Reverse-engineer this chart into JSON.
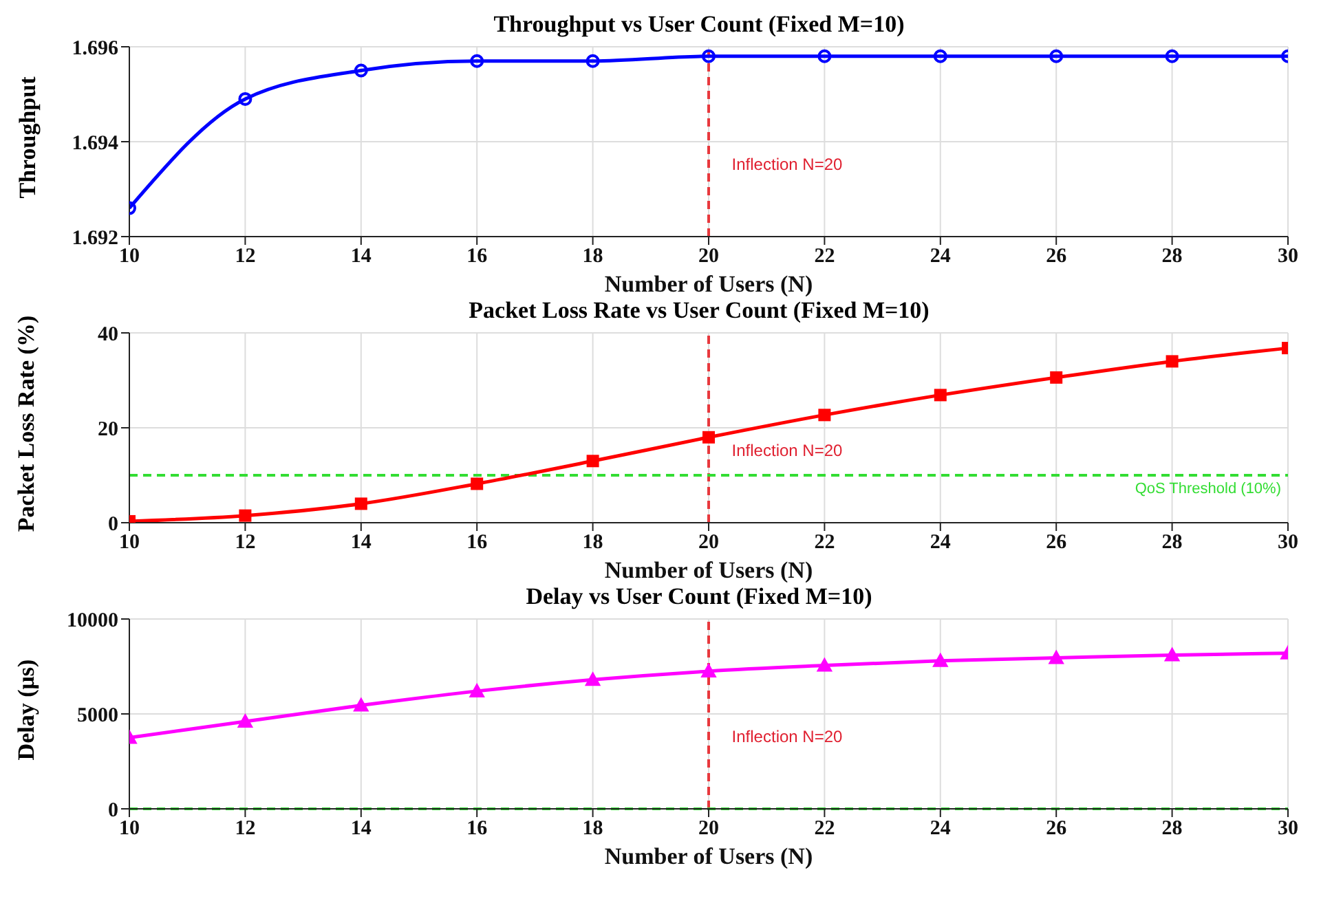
{
  "chart_data": [
    {
      "type": "line",
      "title": "Throughput vs User Count (Fixed M=10)",
      "xlabel": "Number of Users (N)",
      "ylabel": "Throughput",
      "x": [
        10,
        12,
        14,
        16,
        18,
        20,
        22,
        24,
        26,
        28,
        30
      ],
      "series": [
        {
          "color": "#0000ff",
          "values": [
            1.6926,
            1.6949,
            1.6955,
            1.6957,
            1.6957,
            1.6958,
            1.6958,
            1.6958,
            1.6958,
            1.6958,
            1.6958
          ]
        }
      ],
      "xlim": [
        10,
        30
      ],
      "xticks": [
        10,
        12,
        14,
        16,
        18,
        20,
        22,
        24,
        26,
        28,
        30
      ],
      "ylim": [
        1.692,
        1.696
      ],
      "yticks": [
        {
          "value": 1.692,
          "label": "1.692"
        },
        {
          "value": 1.694,
          "label": "1.694"
        },
        {
          "value": 1.696,
          "label": "1.696"
        }
      ],
      "ref_lines": [
        {
          "axis": "x",
          "value": 20,
          "color": "#e8383d",
          "line_style": "dashed"
        }
      ],
      "annotations": [
        "Inflection N=20"
      ],
      "grid": true,
      "marker": "circle",
      "line_style": "solid",
      "legend": false
    },
    {
      "type": "line",
      "title": "Packet Loss Rate vs User Count (Fixed M=10)",
      "xlabel": "Number of Users (N)",
      "ylabel": "Packet Loss Rate (%)",
      "x": [
        10,
        12,
        14,
        16,
        18,
        20,
        22,
        24,
        26,
        28,
        30
      ],
      "series": [
        {
          "color": "#ff0000",
          "values": [
            0.3,
            1.5,
            4,
            8.2,
            13,
            18,
            22.7,
            26.9,
            30.6,
            34,
            36.8
          ]
        }
      ],
      "xlim": [
        10,
        30
      ],
      "xticks": [
        10,
        12,
        14,
        16,
        18,
        20,
        22,
        24,
        26,
        28,
        30
      ],
      "ylim": [
        0,
        40
      ],
      "yticks": [
        0,
        20,
        40
      ],
      "ref_lines": [
        {
          "axis": "x",
          "value": 20,
          "color": "#e8383d",
          "line_style": "dashed"
        },
        {
          "axis": "y",
          "value": 10,
          "label": "QoS Threshold (10%)",
          "color": "#33dd33",
          "line_style": "dashed"
        }
      ],
      "annotations": [
        "Inflection N=20"
      ],
      "grid": true,
      "marker": "square",
      "line_style": "solid",
      "legend": false
    },
    {
      "type": "line",
      "title": "Delay vs User Count (Fixed M=10)",
      "xlabel": "Number of Users (N)",
      "ylabel": "Delay (μs)",
      "x": [
        10,
        12,
        14,
        16,
        18,
        20,
        22,
        24,
        26,
        28,
        30
      ],
      "series": [
        {
          "color": "#ff00ff",
          "values": [
            3750,
            4600,
            5450,
            6200,
            6800,
            7250,
            7550,
            7800,
            7950,
            8100,
            8200
          ]
        }
      ],
      "xlim": [
        10,
        30
      ],
      "xticks": [
        10,
        12,
        14,
        16,
        18,
        20,
        22,
        24,
        26,
        28,
        30
      ],
      "ylim": [
        0,
        10000
      ],
      "yticks": [
        0,
        5000,
        10000
      ],
      "ref_lines": [
        {
          "axis": "x",
          "value": 20,
          "color": "#e8383d",
          "line_style": "dashed"
        },
        {
          "axis": "y",
          "value": 0,
          "color": "#33dd33",
          "line_style": "dashed"
        }
      ],
      "annotations": [
        "Inflection N=20"
      ],
      "grid": true,
      "marker": "triangle",
      "line_style": "solid",
      "legend": false
    }
  ]
}
